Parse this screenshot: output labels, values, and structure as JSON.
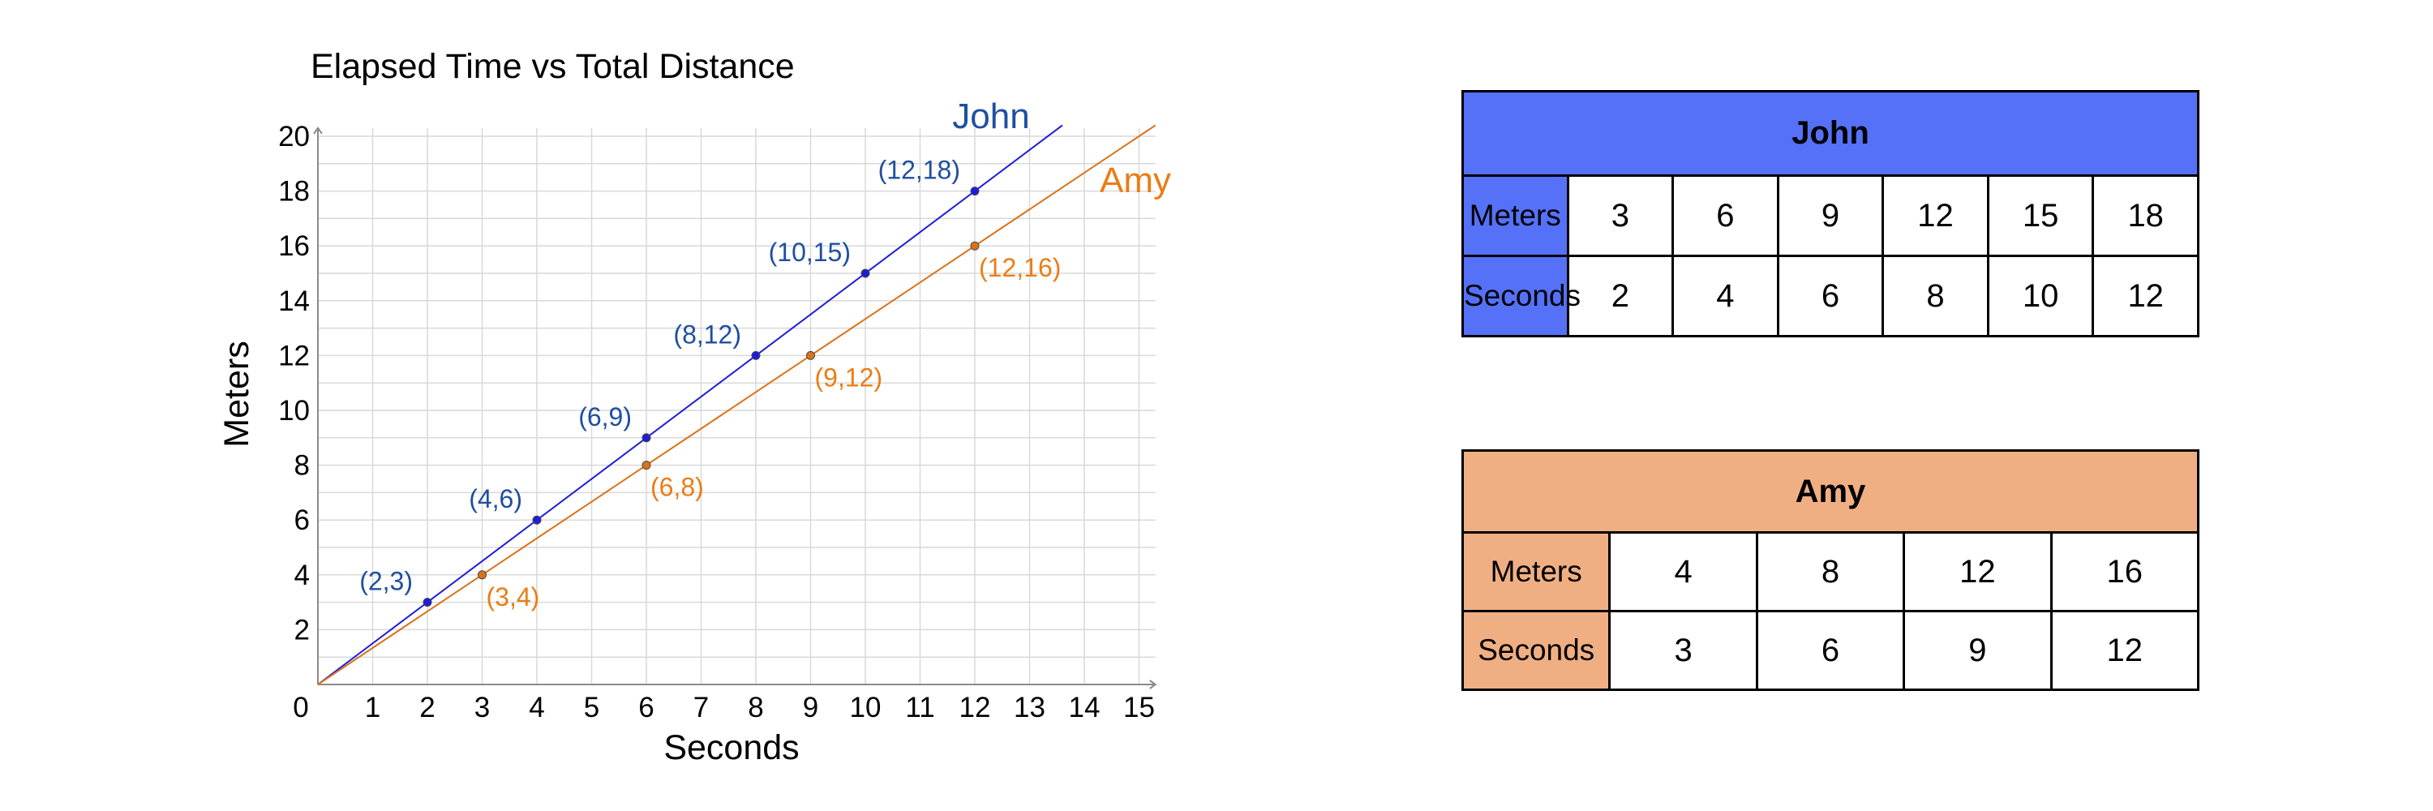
{
  "chart_data": {
    "type": "line",
    "title": "Elapsed Time vs Total Distance",
    "xlabel": "Seconds",
    "ylabel": "Meters",
    "xlim": [
      0,
      15.3
    ],
    "ylim": [
      0,
      20.3
    ],
    "x_ticks": [
      "1",
      "2",
      "3",
      "4",
      "5",
      "6",
      "7",
      "8",
      "9",
      "10",
      "11",
      "12",
      "13",
      "14",
      "15"
    ],
    "y_ticks": [
      "2",
      "4",
      "6",
      "8",
      "10",
      "12",
      "14",
      "16",
      "18",
      "20"
    ],
    "origin_label": "0",
    "grid": true,
    "series": [
      {
        "name": "John",
        "color": "#1d1ddb",
        "label_color": "#1f4fa0",
        "line_end_x": 13.6,
        "points": [
          [
            2,
            3
          ],
          [
            4,
            6
          ],
          [
            6,
            9
          ],
          [
            8,
            12
          ],
          [
            10,
            15
          ],
          [
            12,
            18
          ]
        ],
        "point_labels": [
          "(2,3)",
          "(4,6)",
          "(6,9)",
          "(8,12)",
          "(10,15)",
          "(12,18)"
        ]
      },
      {
        "name": "Amy",
        "color": "#d9731a",
        "label_color": "#ea7d16",
        "line_end_x": 15.3,
        "points": [
          [
            3,
            4
          ],
          [
            6,
            8
          ],
          [
            9,
            12
          ],
          [
            12,
            16
          ]
        ],
        "point_labels": [
          "(3,4)",
          "(6,8)",
          "(9,12)",
          "(12,16)"
        ]
      }
    ]
  },
  "tables": {
    "john": {
      "title": "John",
      "rows": [
        {
          "label": "Meters",
          "values": [
            "3",
            "6",
            "9",
            "12",
            "15",
            "18"
          ]
        },
        {
          "label": "Seconds",
          "values": [
            "2",
            "4",
            "6",
            "8",
            "10",
            "12"
          ]
        }
      ]
    },
    "amy": {
      "title": "Amy",
      "rows": [
        {
          "label": "Meters",
          "values": [
            "4",
            "8",
            "12",
            "16"
          ]
        },
        {
          "label": "Seconds",
          "values": [
            "3",
            "6",
            "9",
            "12"
          ]
        }
      ]
    }
  }
}
